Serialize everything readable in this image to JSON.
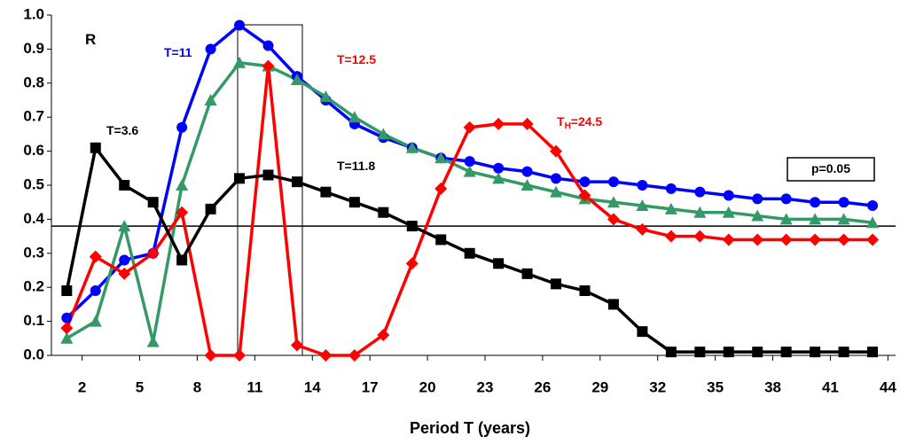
{
  "chart_data": {
    "type": "line",
    "x_label": "Period T (years)",
    "x": [
      1.2,
      2.7,
      4.2,
      5.7,
      7.2,
      8.7,
      10.2,
      11.7,
      13.2,
      14.7,
      16.2,
      17.7,
      19.2,
      20.7,
      22.2,
      23.7,
      25.2,
      26.7,
      28.2,
      29.7,
      31.2,
      32.7,
      34.2,
      35.7,
      37.2,
      38.7,
      40.2,
      41.7,
      43.2
    ],
    "xlim": [
      0.4,
      44.4
    ],
    "xticks": [
      2,
      5,
      8,
      11,
      14,
      17,
      20,
      23,
      26,
      29,
      32,
      35,
      38,
      41,
      44
    ],
    "ylim": [
      0,
      1
    ],
    "yticks": [
      {
        "value": 0,
        "label": "0.0"
      },
      0.1,
      0.2,
      0.3,
      0.4,
      0.5,
      0.6,
      0.7,
      0.8,
      0.9,
      {
        "value": 1,
        "label": "1.0"
      }
    ],
    "reference_line": 0.38,
    "series": [
      {
        "color": "#0000ff",
        "marker": "circle",
        "values": [
          0.11,
          0.19,
          0.28,
          0.3,
          0.67,
          0.9,
          0.97,
          0.91,
          0.82,
          0.75,
          0.68,
          0.64,
          0.61,
          0.58,
          0.57,
          0.55,
          0.54,
          0.52,
          0.51,
          0.51,
          0.5,
          0.49,
          0.48,
          0.47,
          0.46,
          0.46,
          0.45,
          0.45,
          0.44
        ]
      },
      {
        "color": "#339966",
        "marker": "triangle",
        "values": [
          0.05,
          0.1,
          0.38,
          0.04,
          0.5,
          0.75,
          0.86,
          0.85,
          0.81,
          0.76,
          0.7,
          0.65,
          0.61,
          0.58,
          0.54,
          0.52,
          0.5,
          0.48,
          0.46,
          0.45,
          0.44,
          0.43,
          0.42,
          0.42,
          0.41,
          0.4,
          0.4,
          0.4,
          0.39
        ]
      },
      {
        "color": "#ff0000",
        "marker": "diamond",
        "values": [
          0.08,
          0.29,
          0.24,
          0.3,
          0.42,
          0.0,
          0.0,
          0.85,
          0.03,
          0.0,
          0.0,
          0.06,
          0.27,
          0.49,
          0.67,
          0.68,
          0.68,
          0.6,
          0.47,
          0.4,
          0.37,
          0.35,
          0.35,
          0.34,
          0.34,
          0.34,
          0.34,
          0.34,
          0.34
        ]
      },
      {
        "color": "#000000",
        "marker": "square",
        "values": [
          0.19,
          0.61,
          0.5,
          0.45,
          0.28,
          0.43,
          0.52,
          0.53,
          0.51,
          0.48,
          0.45,
          0.42,
          0.38,
          0.34,
          0.3,
          0.27,
          0.24,
          0.21,
          0.19,
          0.15,
          0.07,
          0.01,
          0.01,
          0.01,
          0.01,
          0.01,
          0.01,
          0.01,
          0.01
        ]
      }
    ],
    "annotations": [
      {
        "text": "R",
        "color": "#000000"
      },
      {
        "text": "T=11",
        "color": "#0000ff"
      },
      {
        "text": "T=12.5",
        "color": "#ff0000"
      },
      {
        "text": "T=3.6",
        "color": "#000000"
      },
      {
        "text": "T=11.8",
        "color": "#000000"
      },
      {
        "text": "T",
        "subscript": "H",
        "suffix": "=24.5",
        "color": "#ff0000"
      },
      {
        "text": "p=0.05",
        "color": "#000000",
        "boxed": true
      }
    ]
  }
}
